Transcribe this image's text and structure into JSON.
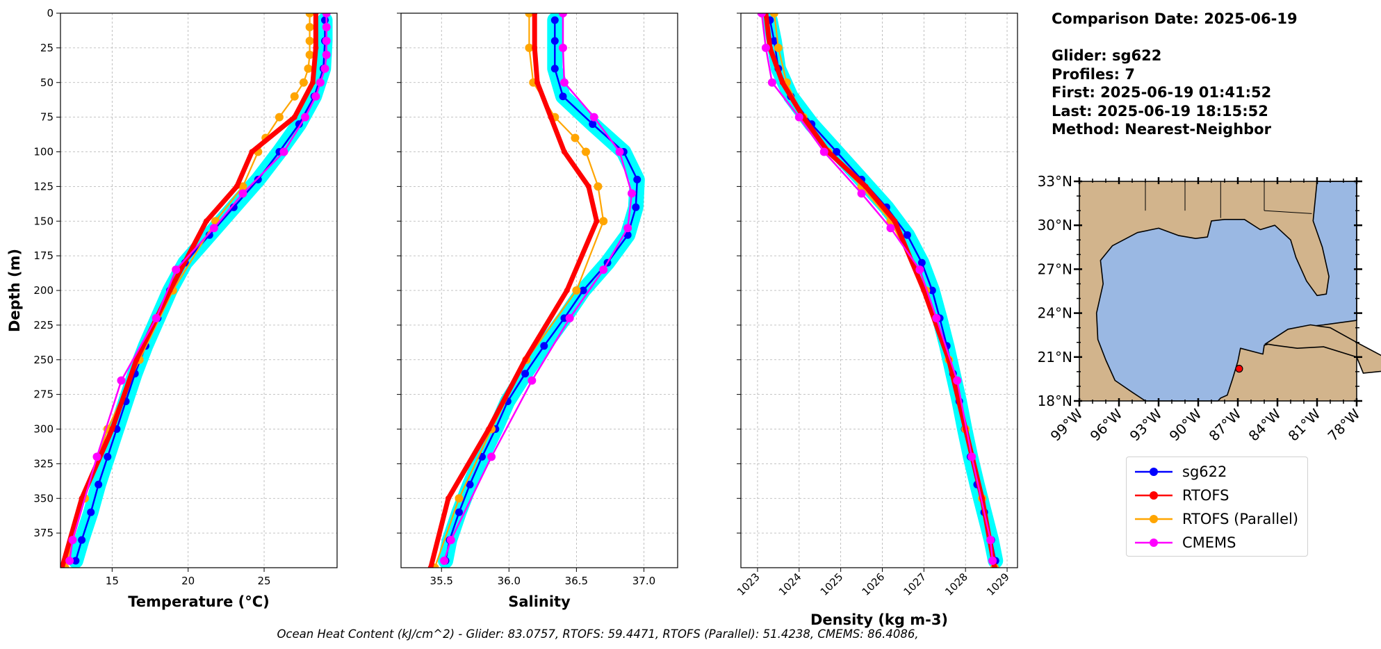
{
  "info": {
    "comparison_date": "Comparison Date: 2025-06-19",
    "glider": "Glider: sg622",
    "profiles": "Profiles: 7",
    "first": "First: 2025-06-19 01:41:52",
    "last": "Last: 2025-06-19 18:15:52",
    "method": "Method: Nearest-Neighbor"
  },
  "footer": "Ocean Heat Content (kJ/cm^2) - Glider: 83.0757,  RTOFS: 59.4471,  RTOFS (Parallel): 51.4238,  CMEMS: 86.4086,",
  "colors": {
    "sg622": "#0000ff",
    "sg622_band": "#00ffff",
    "rtofs": "#ff0000",
    "rtofs_parallel": "#ffa500",
    "cmems": "#ff00ff",
    "land": "#d2b48c",
    "water": "#9ab8e3"
  },
  "legend": [
    {
      "name": "sg622",
      "color": "#0000ff"
    },
    {
      "name": "RTOFS",
      "color": "#ff0000"
    },
    {
      "name": "RTOFS (Parallel)",
      "color": "#ffa500"
    },
    {
      "name": "CMEMS",
      "color": "#ff00ff"
    }
  ],
  "chart_data": [
    {
      "type": "line",
      "xlabel": "Temperature (°C)",
      "ylabel": "Depth (m)",
      "xlim": [
        11.6,
        29.8
      ],
      "ylim": [
        400,
        0
      ],
      "xticks": [
        15,
        20,
        25
      ],
      "yticks": [
        0,
        25,
        50,
        75,
        100,
        125,
        150,
        175,
        200,
        225,
        250,
        275,
        300,
        325,
        350,
        375
      ],
      "grid": true,
      "series": [
        {
          "name": "sg622",
          "depth": [
            5,
            20,
            40,
            60,
            80,
            100,
            120,
            140,
            160,
            180,
            200,
            220,
            240,
            260,
            280,
            300,
            320,
            340,
            360,
            380,
            395
          ],
          "values": [
            29.0,
            29.0,
            28.9,
            28.3,
            27.3,
            26.0,
            24.6,
            23.0,
            21.4,
            19.8,
            18.8,
            18.0,
            17.2,
            16.5,
            15.9,
            15.3,
            14.7,
            14.1,
            13.6,
            13.0,
            12.6
          ]
        },
        {
          "name": "RTOFS",
          "depth": [
            0,
            25,
            50,
            75,
            100,
            125,
            150,
            200,
            250,
            300,
            350,
            400
          ],
          "values": [
            28.4,
            28.4,
            28.2,
            27.0,
            24.2,
            23.2,
            21.2,
            18.8,
            16.6,
            15.0,
            13.0,
            11.7
          ]
        },
        {
          "name": "RTOFS (Parallel)",
          "depth": [
            0,
            10,
            20,
            30,
            40,
            50,
            60,
            75,
            90,
            100,
            125,
            150,
            200,
            250,
            300,
            350,
            400
          ],
          "values": [
            28.0,
            28.0,
            28.0,
            28.0,
            27.9,
            27.6,
            27.0,
            26.0,
            25.1,
            24.6,
            23.6,
            21.8,
            19.0,
            16.8,
            14.7,
            13.2,
            11.9
          ]
        },
        {
          "name": "CMEMS",
          "depth": [
            0,
            10,
            20,
            30,
            40,
            50,
            60,
            75,
            100,
            130,
            155,
            185,
            220,
            265,
            320,
            380,
            395
          ],
          "values": [
            29.1,
            29.1,
            29.1,
            29.1,
            29.0,
            28.7,
            28.4,
            27.7,
            26.3,
            23.6,
            21.7,
            19.2,
            17.9,
            15.6,
            14.0,
            12.4,
            12.2
          ]
        }
      ]
    },
    {
      "type": "line",
      "xlabel": "Salinity",
      "ylabel": "",
      "xlim": [
        35.2,
        37.25
      ],
      "ylim": [
        400,
        0
      ],
      "xticks": [
        35.5,
        36.0,
        36.5,
        37.0
      ],
      "xtick_labels": [
        "35.5",
        "36.0",
        "36.5",
        "37.0"
      ],
      "grid": true,
      "series": [
        {
          "name": "sg622",
          "depth": [
            5,
            20,
            40,
            60,
            80,
            100,
            120,
            140,
            160,
            180,
            200,
            220,
            240,
            260,
            280,
            300,
            320,
            340,
            360,
            380,
            395
          ],
          "values": [
            36.34,
            36.34,
            36.34,
            36.4,
            36.62,
            36.85,
            36.95,
            36.94,
            36.88,
            36.73,
            36.55,
            36.41,
            36.26,
            36.12,
            35.99,
            35.9,
            35.8,
            35.71,
            35.63,
            35.56,
            35.53
          ]
        },
        {
          "name": "RTOFS",
          "depth": [
            0,
            25,
            50,
            75,
            100,
            125,
            150,
            200,
            250,
            300,
            350,
            400
          ],
          "values": [
            36.19,
            36.19,
            36.21,
            36.31,
            36.41,
            36.59,
            36.65,
            36.43,
            36.12,
            35.85,
            35.55,
            35.42
          ]
        },
        {
          "name": "RTOFS (Parallel)",
          "depth": [
            0,
            25,
            50,
            75,
            90,
            100,
            125,
            150,
            200,
            250,
            300,
            350,
            400
          ],
          "values": [
            36.15,
            36.15,
            36.18,
            36.34,
            36.49,
            36.57,
            36.66,
            36.7,
            36.5,
            36.13,
            35.87,
            35.63,
            35.45
          ]
        },
        {
          "name": "CMEMS",
          "depth": [
            0,
            25,
            50,
            75,
            100,
            130,
            155,
            185,
            220,
            265,
            320,
            380,
            395
          ],
          "values": [
            36.4,
            36.4,
            36.41,
            36.63,
            36.82,
            36.91,
            36.88,
            36.7,
            36.45,
            36.17,
            35.87,
            35.57,
            35.52
          ]
        }
      ]
    },
    {
      "type": "line",
      "xlabel": "Density (kg m-3)",
      "ylabel": "",
      "xlim": [
        1022.6,
        1029.25
      ],
      "ylim": [
        400,
        0
      ],
      "xticks": [
        1023,
        1024,
        1025,
        1026,
        1027,
        1028,
        1029
      ],
      "grid": true,
      "series": [
        {
          "name": "sg622",
          "depth": [
            5,
            20,
            40,
            60,
            80,
            100,
            120,
            140,
            160,
            180,
            200,
            220,
            240,
            260,
            280,
            300,
            320,
            340,
            360,
            380,
            395
          ],
          "values": [
            1023.3,
            1023.4,
            1023.5,
            1023.8,
            1024.3,
            1024.9,
            1025.5,
            1026.1,
            1026.6,
            1026.95,
            1027.2,
            1027.38,
            1027.55,
            1027.7,
            1027.85,
            1027.98,
            1028.12,
            1028.28,
            1028.45,
            1028.62,
            1028.72
          ]
        },
        {
          "name": "RTOFS",
          "depth": [
            0,
            25,
            50,
            75,
            100,
            125,
            150,
            200,
            250,
            300,
            350,
            400
          ],
          "values": [
            1023.2,
            1023.3,
            1023.6,
            1024.1,
            1024.7,
            1025.6,
            1026.3,
            1027.0,
            1027.6,
            1028.0,
            1028.4,
            1028.7
          ]
        },
        {
          "name": "RTOFS (Parallel)",
          "depth": [
            0,
            25,
            50,
            75,
            100,
            125,
            150,
            200,
            250,
            300,
            350,
            400
          ],
          "values": [
            1023.4,
            1023.5,
            1023.7,
            1024.1,
            1024.7,
            1025.5,
            1026.2,
            1027.05,
            1027.6,
            1028.0,
            1028.4,
            1028.7
          ]
        },
        {
          "name": "CMEMS",
          "depth": [
            0,
            25,
            50,
            75,
            100,
            130,
            155,
            185,
            220,
            265,
            320,
            380,
            395
          ],
          "values": [
            1023.1,
            1023.2,
            1023.35,
            1024.0,
            1024.6,
            1025.5,
            1026.2,
            1026.9,
            1027.3,
            1027.8,
            1028.15,
            1028.6,
            1028.65
          ]
        }
      ]
    }
  ],
  "map": {
    "lat_ticks": [
      "18°N",
      "21°N",
      "24°N",
      "27°N",
      "30°N",
      "33°N"
    ],
    "lon_ticks": [
      "99°W",
      "96°W",
      "93°W",
      "90°W",
      "87°W",
      "84°W",
      "81°W",
      "78°W"
    ],
    "lat_range": [
      18,
      33
    ],
    "lon_range": [
      -99,
      -78
    ],
    "marker": {
      "lat": 20.2,
      "lon": -86.9
    }
  }
}
